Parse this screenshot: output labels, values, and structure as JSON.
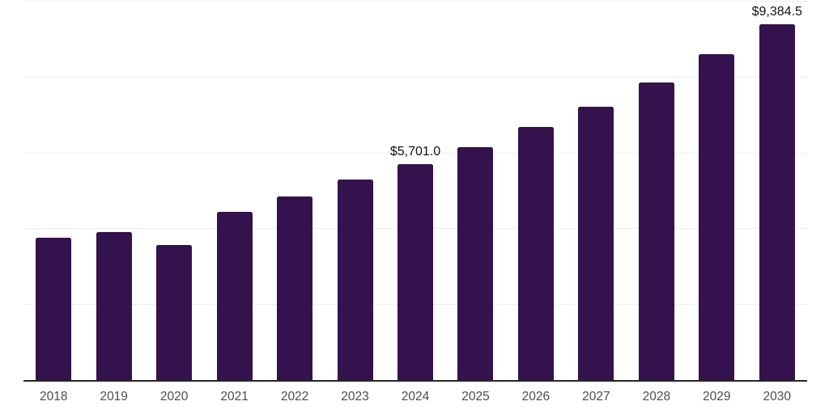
{
  "chart_data": {
    "type": "bar",
    "title": "",
    "xlabel": "",
    "ylabel": "",
    "categories": [
      "2018",
      "2019",
      "2020",
      "2021",
      "2022",
      "2023",
      "2024",
      "2025",
      "2026",
      "2027",
      "2028",
      "2029",
      "2030"
    ],
    "values": [
      3750,
      3900,
      3570,
      4435,
      4840,
      5280,
      5701.0,
      6140,
      6670,
      7210,
      7850,
      8590,
      9384.5
    ],
    "annotations": [
      {
        "index": 6,
        "text": "$5,701.0"
      },
      {
        "index": 12,
        "text": "$9,384.5"
      }
    ],
    "ylim": [
      0,
      10000
    ],
    "gridline_values": [
      2000,
      4000,
      6000,
      8000,
      10000
    ],
    "grid": "horizontal-only",
    "legend": "none",
    "y_tick_labels_shown": false
  },
  "style": {
    "bar_color": "#34124D",
    "gridline_color": "#EFEFEF",
    "axis_line_color": "#262626",
    "tick_label_color": "#4C4C4C",
    "value_label_color": "#121212",
    "background_color": "#FFFFFF"
  }
}
